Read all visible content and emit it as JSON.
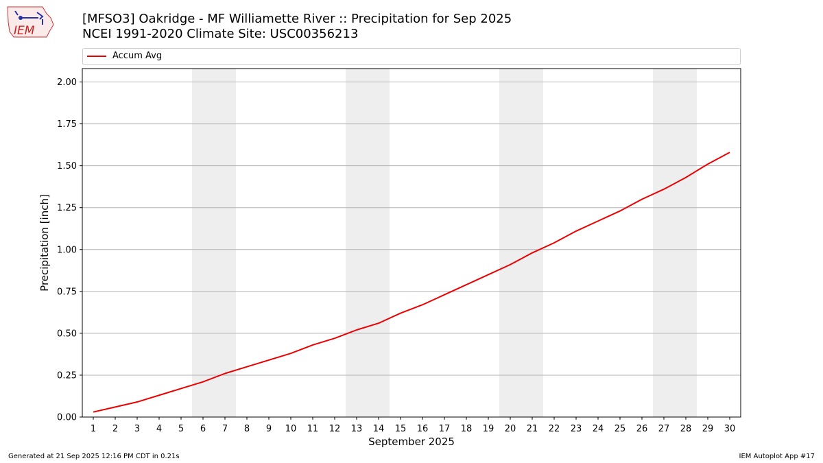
{
  "header": {
    "title_line1": "[MFSO3] Oakridge - MF Williamette River :: Precipitation for Sep 2025",
    "title_line2": "NCEI 1991-2020 Climate Site: USC00356213",
    "logo_text": "IEM"
  },
  "footer": {
    "generated": "Generated at 21 Sep 2025 12:16 PM CDT in 0.21s",
    "app": "IEM Autoplot App #17"
  },
  "colors": {
    "line": "#ee0000",
    "weekend_band": "#eeeeee",
    "grid": "#b0b0b0"
  },
  "chart_data": {
    "type": "line",
    "title": "[MFSO3] Oakridge - MF Williamette River :: Precipitation for Sep 2025",
    "xlabel": "September 2025",
    "ylabel": "Precipitation [inch]",
    "xlim": [
      0.5,
      30.5
    ],
    "ylim": [
      0,
      2.08
    ],
    "yticks": [
      0.0,
      0.25,
      0.5,
      0.75,
      1.0,
      1.25,
      1.5,
      1.75,
      2.0
    ],
    "ytick_labels": [
      "0.00",
      "0.25",
      "0.50",
      "0.75",
      "1.00",
      "1.25",
      "1.50",
      "1.75",
      "2.00"
    ],
    "x": [
      1,
      2,
      3,
      4,
      5,
      6,
      7,
      8,
      9,
      10,
      11,
      12,
      13,
      14,
      15,
      16,
      17,
      18,
      19,
      20,
      21,
      22,
      23,
      24,
      25,
      26,
      27,
      28,
      29,
      30
    ],
    "grid": "horizontal",
    "legend_position": "top",
    "shaded_bands": [
      [
        5.5,
        7.5
      ],
      [
        12.5,
        14.5
      ],
      [
        19.5,
        21.5
      ],
      [
        26.5,
        28.5
      ]
    ],
    "series": [
      {
        "name": "Accum Avg",
        "values": [
          0.03,
          0.06,
          0.09,
          0.13,
          0.17,
          0.21,
          0.26,
          0.3,
          0.34,
          0.38,
          0.43,
          0.47,
          0.52,
          0.56,
          0.62,
          0.67,
          0.73,
          0.79,
          0.85,
          0.91,
          0.98,
          1.04,
          1.11,
          1.17,
          1.23,
          1.3,
          1.36,
          1.43,
          1.51,
          1.58
        ]
      }
    ]
  }
}
